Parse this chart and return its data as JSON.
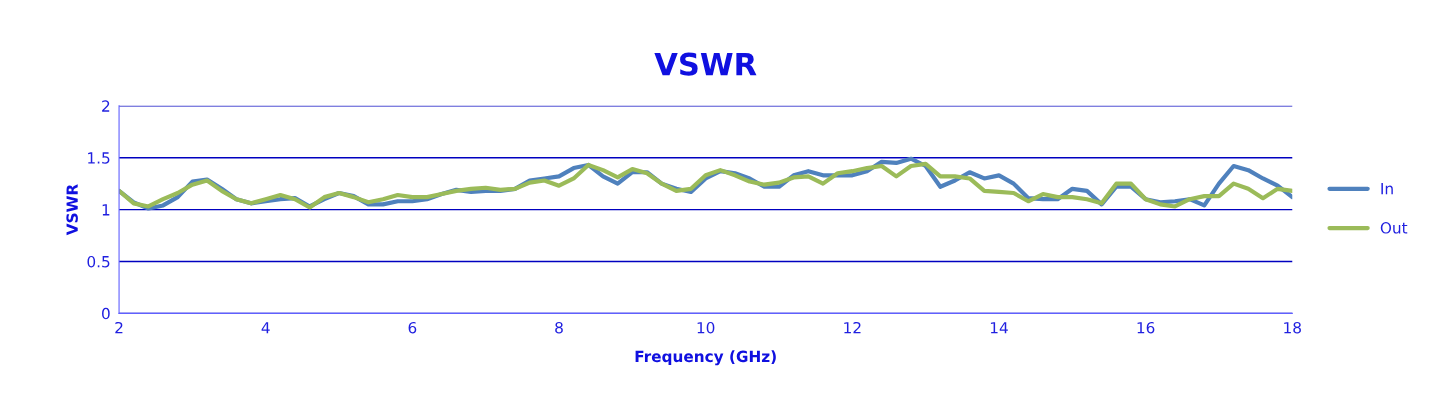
{
  "chart_data": {
    "type": "line",
    "title": "VSWR",
    "xlabel": "Frequency (GHz)",
    "ylabel": "VSWR",
    "x": [
      2.0,
      2.2,
      2.4,
      2.6,
      2.8,
      3.0,
      3.2,
      3.4,
      3.6,
      3.8,
      4.0,
      4.2,
      4.4,
      4.6,
      4.8,
      5.0,
      5.2,
      5.4,
      5.6,
      5.8,
      6.0,
      6.2,
      6.4,
      6.6,
      6.8,
      7.0,
      7.2,
      7.4,
      7.6,
      7.8,
      8.0,
      8.2,
      8.4,
      8.6,
      8.8,
      9.0,
      9.2,
      9.4,
      9.6,
      9.8,
      10.0,
      10.2,
      10.4,
      10.6,
      10.8,
      11.0,
      11.2,
      11.4,
      11.6,
      11.8,
      12.0,
      12.2,
      12.4,
      12.6,
      12.8,
      13.0,
      13.2,
      13.4,
      13.6,
      13.8,
      14.0,
      14.2,
      14.4,
      14.6,
      14.8,
      15.0,
      15.2,
      15.4,
      15.6,
      15.8,
      16.0,
      16.2,
      16.4,
      16.6,
      16.8,
      17.0,
      17.2,
      17.4,
      17.6,
      17.8,
      18.0
    ],
    "series": [
      {
        "name": "In",
        "color": "#4f81bd",
        "values": [
          1.18,
          1.07,
          1.01,
          1.04,
          1.12,
          1.27,
          1.29,
          1.2,
          1.1,
          1.06,
          1.08,
          1.1,
          1.11,
          1.03,
          1.1,
          1.16,
          1.13,
          1.05,
          1.05,
          1.08,
          1.08,
          1.1,
          1.15,
          1.19,
          1.17,
          1.18,
          1.18,
          1.2,
          1.28,
          1.3,
          1.32,
          1.4,
          1.43,
          1.32,
          1.25,
          1.36,
          1.36,
          1.25,
          1.2,
          1.17,
          1.3,
          1.37,
          1.35,
          1.3,
          1.22,
          1.22,
          1.33,
          1.37,
          1.33,
          1.33,
          1.33,
          1.37,
          1.46,
          1.45,
          1.49,
          1.42,
          1.22,
          1.28,
          1.36,
          1.3,
          1.33,
          1.25,
          1.11,
          1.1,
          1.1,
          1.2,
          1.18,
          1.05,
          1.22,
          1.22,
          1.1,
          1.07,
          1.08,
          1.1,
          1.04,
          1.25,
          1.42,
          1.38,
          1.3,
          1.23,
          1.12
        ]
      },
      {
        "name": "Out",
        "color": "#9bbb59",
        "values": [
          1.18,
          1.06,
          1.03,
          1.1,
          1.16,
          1.24,
          1.28,
          1.18,
          1.1,
          1.06,
          1.1,
          1.14,
          1.1,
          1.02,
          1.12,
          1.16,
          1.12,
          1.07,
          1.1,
          1.14,
          1.12,
          1.12,
          1.15,
          1.18,
          1.2,
          1.21,
          1.19,
          1.2,
          1.26,
          1.28,
          1.23,
          1.3,
          1.43,
          1.38,
          1.31,
          1.39,
          1.35,
          1.25,
          1.18,
          1.2,
          1.33,
          1.38,
          1.33,
          1.27,
          1.24,
          1.26,
          1.31,
          1.32,
          1.25,
          1.35,
          1.37,
          1.4,
          1.42,
          1.32,
          1.42,
          1.44,
          1.32,
          1.32,
          1.3,
          1.18,
          1.17,
          1.16,
          1.08,
          1.15,
          1.12,
          1.12,
          1.1,
          1.06,
          1.25,
          1.25,
          1.1,
          1.05,
          1.03,
          1.1,
          1.13,
          1.13,
          1.25,
          1.2,
          1.11,
          1.2,
          1.18
        ]
      }
    ],
    "xlim": [
      2,
      18
    ],
    "xticks": [
      2,
      4,
      6,
      8,
      10,
      12,
      14,
      16,
      18
    ],
    "ylim": [
      0,
      2
    ],
    "yticks": [
      0,
      0.5,
      1,
      1.5,
      2
    ],
    "grid": "y",
    "legend": "right",
    "marker": "none",
    "line_style": "solid"
  }
}
